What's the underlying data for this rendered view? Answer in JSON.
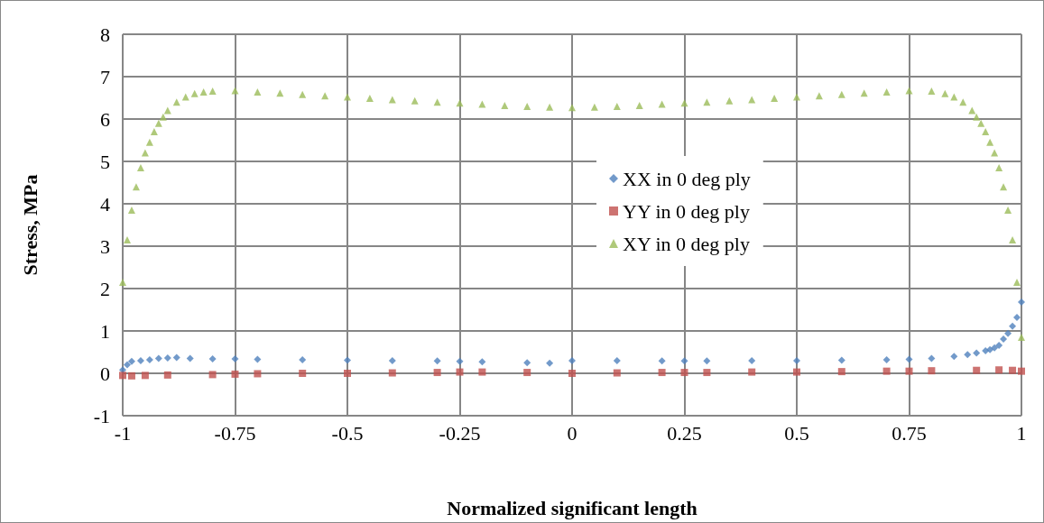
{
  "chart_data": {
    "type": "scatter",
    "xlabel": "Normalized significant length",
    "ylabel": "Stress, MPa",
    "xlim": [
      -1,
      1
    ],
    "xticks": [
      -1,
      -0.75,
      -0.5,
      -0.25,
      0,
      0.25,
      0.5,
      0.75,
      1
    ],
    "ylim": [
      -1,
      8
    ],
    "yticks": [
      -1,
      0,
      1,
      2,
      3,
      4,
      5,
      6,
      7,
      8
    ],
    "grid": true,
    "legend": "right",
    "series": [
      {
        "name": "XX in 0 deg ply",
        "color": "#4f81bd",
        "marker": "diamond",
        "x": [
          -1,
          -0.99,
          -0.98,
          -0.96,
          -0.94,
          -0.92,
          -0.9,
          -0.88,
          -0.85,
          -0.8,
          -0.75,
          -0.7,
          -0.6,
          -0.5,
          -0.4,
          -0.3,
          -0.25,
          -0.2,
          -0.1,
          -0.05,
          0,
          0.1,
          0.2,
          0.25,
          0.3,
          0.4,
          0.5,
          0.6,
          0.7,
          0.75,
          0.8,
          0.85,
          0.88,
          0.9,
          0.92,
          0.93,
          0.94,
          0.95,
          0.96,
          0.97,
          0.98,
          0.99,
          1
        ],
        "values": [
          0.08,
          0.2,
          0.28,
          0.3,
          0.32,
          0.35,
          0.36,
          0.37,
          0.35,
          0.34,
          0.34,
          0.33,
          0.32,
          0.31,
          0.3,
          0.29,
          0.28,
          0.27,
          0.25,
          0.24,
          0.3,
          0.3,
          0.29,
          0.29,
          0.29,
          0.3,
          0.3,
          0.31,
          0.32,
          0.33,
          0.35,
          0.4,
          0.44,
          0.48,
          0.53,
          0.56,
          0.6,
          0.66,
          0.81,
          0.94,
          1.11,
          1.32,
          1.68
        ]
      },
      {
        "name": "YY in 0 deg ply",
        "color": "#c0504d",
        "marker": "square",
        "x": [
          -1,
          -0.98,
          -0.95,
          -0.9,
          -0.8,
          -0.75,
          -0.7,
          -0.6,
          -0.5,
          -0.4,
          -0.3,
          -0.25,
          -0.2,
          -0.1,
          0,
          0.1,
          0.2,
          0.25,
          0.3,
          0.4,
          0.5,
          0.6,
          0.7,
          0.75,
          0.8,
          0.9,
          0.95,
          0.98,
          1
        ],
        "values": [
          -0.05,
          -0.06,
          -0.05,
          -0.04,
          -0.03,
          -0.02,
          -0.01,
          0,
          0,
          0.01,
          0.02,
          0.03,
          0.03,
          0.02,
          0,
          0.01,
          0.02,
          0.02,
          0.02,
          0.03,
          0.03,
          0.04,
          0.05,
          0.05,
          0.06,
          0.07,
          0.08,
          0.07,
          0.05
        ]
      },
      {
        "name": "XY in 0 deg ply",
        "color": "#9bbb59",
        "marker": "triangle",
        "x": [
          -1,
          -0.99,
          -0.98,
          -0.97,
          -0.96,
          -0.95,
          -0.94,
          -0.93,
          -0.92,
          -0.91,
          -0.9,
          -0.88,
          -0.86,
          -0.84,
          -0.82,
          -0.8,
          -0.75,
          -0.7,
          -0.65,
          -0.6,
          -0.55,
          -0.5,
          -0.45,
          -0.4,
          -0.35,
          -0.3,
          -0.25,
          -0.2,
          -0.15,
          -0.1,
          -0.05,
          0,
          0.05,
          0.1,
          0.15,
          0.2,
          0.25,
          0.3,
          0.35,
          0.4,
          0.45,
          0.5,
          0.55,
          0.6,
          0.65,
          0.7,
          0.75,
          0.8,
          0.83,
          0.85,
          0.87,
          0.89,
          0.9,
          0.91,
          0.92,
          0.93,
          0.94,
          0.95,
          0.96,
          0.97,
          0.98,
          0.99,
          1
        ],
        "values": [
          2.15,
          3.15,
          3.85,
          4.4,
          4.85,
          5.2,
          5.45,
          5.7,
          5.9,
          6.05,
          6.2,
          6.4,
          6.52,
          6.6,
          6.64,
          6.66,
          6.67,
          6.64,
          6.61,
          6.58,
          6.55,
          6.52,
          6.49,
          6.46,
          6.43,
          6.4,
          6.38,
          6.35,
          6.32,
          6.3,
          6.28,
          6.27,
          6.28,
          6.3,
          6.32,
          6.35,
          6.38,
          6.4,
          6.43,
          6.46,
          6.49,
          6.52,
          6.55,
          6.58,
          6.61,
          6.64,
          6.67,
          6.66,
          6.6,
          6.52,
          6.4,
          6.2,
          6.05,
          5.9,
          5.7,
          5.45,
          5.2,
          4.85,
          4.4,
          3.85,
          3.15,
          2.15,
          0.85
        ]
      }
    ]
  }
}
